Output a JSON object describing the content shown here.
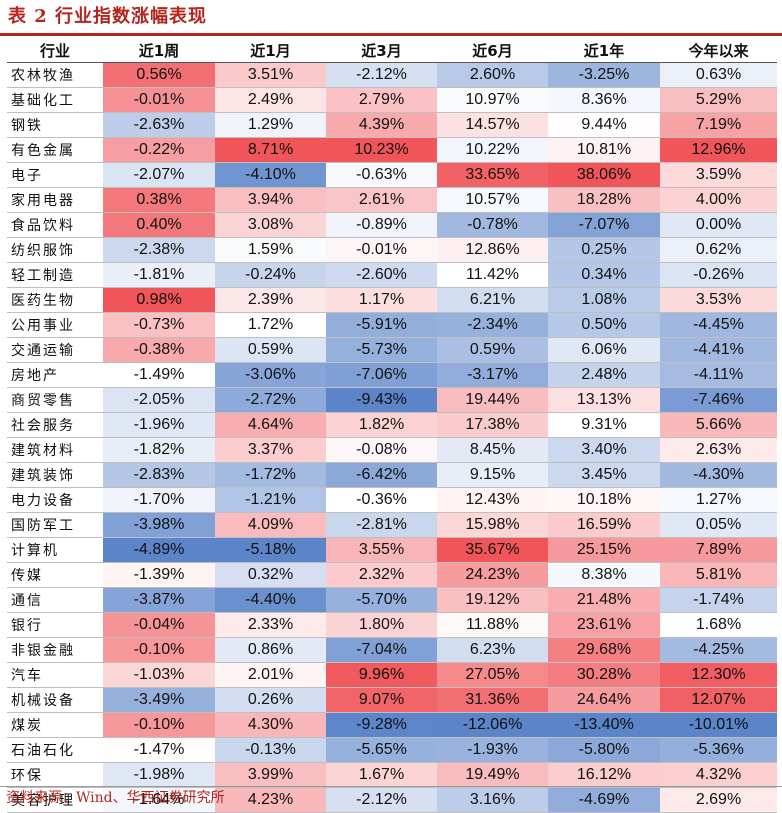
{
  "title": "表 2 行业指数涨幅表现",
  "source": "资料来源：Wind、华西证券研究所",
  "columns": [
    "行业",
    "近1周",
    "近1月",
    "近3月",
    "近6月",
    "近1年",
    "今年以来"
  ],
  "rows": [
    {
      "name": "农林牧渔",
      "values": [
        "0.56%",
        "3.51%",
        "-2.12%",
        "2.60%",
        "-3.25%",
        "0.63%"
      ]
    },
    {
      "name": "基础化工",
      "values": [
        "-0.01%",
        "2.49%",
        "2.79%",
        "10.97%",
        "8.36%",
        "5.29%"
      ]
    },
    {
      "name": "钢铁",
      "values": [
        "-2.63%",
        "1.29%",
        "4.39%",
        "14.57%",
        "9.44%",
        "7.19%"
      ]
    },
    {
      "name": "有色金属",
      "values": [
        "-0.22%",
        "8.71%",
        "10.23%",
        "10.22%",
        "10.81%",
        "12.96%"
      ]
    },
    {
      "name": "电子",
      "values": [
        "-2.07%",
        "-4.10%",
        "-0.63%",
        "33.65%",
        "38.06%",
        "3.59%"
      ]
    },
    {
      "name": "家用电器",
      "values": [
        "0.38%",
        "3.94%",
        "2.61%",
        "10.57%",
        "18.28%",
        "4.00%"
      ]
    },
    {
      "name": "食品饮料",
      "values": [
        "0.40%",
        "3.08%",
        "-0.89%",
        "-0.78%",
        "-7.07%",
        "0.00%"
      ]
    },
    {
      "name": "纺织服饰",
      "values": [
        "-2.38%",
        "1.59%",
        "-0.01%",
        "12.86%",
        "0.25%",
        "0.62%"
      ]
    },
    {
      "name": "轻工制造",
      "values": [
        "-1.81%",
        "-0.24%",
        "-2.60%",
        "11.42%",
        "0.34%",
        "-0.26%"
      ]
    },
    {
      "name": "医药生物",
      "values": [
        "0.98%",
        "2.39%",
        "1.17%",
        "6.21%",
        "1.08%",
        "3.53%"
      ]
    },
    {
      "name": "公用事业",
      "values": [
        "-0.73%",
        "1.72%",
        "-5.91%",
        "-2.34%",
        "0.50%",
        "-4.45%"
      ]
    },
    {
      "name": "交通运输",
      "values": [
        "-0.38%",
        "0.59%",
        "-5.73%",
        "0.59%",
        "6.06%",
        "-4.41%"
      ]
    },
    {
      "name": "房地产",
      "values": [
        "-1.49%",
        "-3.06%",
        "-7.06%",
        "-3.17%",
        "2.48%",
        "-4.11%"
      ]
    },
    {
      "name": "商贸零售",
      "values": [
        "-2.05%",
        "-2.72%",
        "-9.43%",
        "19.44%",
        "13.13%",
        "-7.46%"
      ]
    },
    {
      "name": "社会服务",
      "values": [
        "-1.96%",
        "4.64%",
        "1.82%",
        "17.38%",
        "9.31%",
        "5.66%"
      ]
    },
    {
      "name": "建筑材料",
      "values": [
        "-1.82%",
        "3.37%",
        "-0.08%",
        "8.45%",
        "3.40%",
        "2.63%"
      ]
    },
    {
      "name": "建筑装饰",
      "values": [
        "-2.83%",
        "-1.72%",
        "-6.42%",
        "9.15%",
        "3.45%",
        "-4.30%"
      ]
    },
    {
      "name": "电力设备",
      "values": [
        "-1.70%",
        "-1.21%",
        "-0.36%",
        "12.43%",
        "10.18%",
        "1.27%"
      ]
    },
    {
      "name": "国防军工",
      "values": [
        "-3.98%",
        "4.09%",
        "-2.81%",
        "15.98%",
        "16.59%",
        "0.05%"
      ]
    },
    {
      "name": "计算机",
      "values": [
        "-4.89%",
        "-5.18%",
        "3.55%",
        "35.67%",
        "25.15%",
        "7.89%"
      ]
    },
    {
      "name": "传媒",
      "values": [
        "-1.39%",
        "0.32%",
        "2.32%",
        "24.23%",
        "8.38%",
        "5.81%"
      ]
    },
    {
      "name": "通信",
      "values": [
        "-3.87%",
        "-4.40%",
        "-5.70%",
        "19.12%",
        "21.48%",
        "-1.74%"
      ]
    },
    {
      "name": "银行",
      "values": [
        "-0.04%",
        "2.33%",
        "1.80%",
        "11.88%",
        "23.61%",
        "1.68%"
      ]
    },
    {
      "name": "非银金融",
      "values": [
        "-0.10%",
        "0.86%",
        "-7.04%",
        "6.23%",
        "29.68%",
        "-4.25%"
      ]
    },
    {
      "name": "汽车",
      "values": [
        "-1.03%",
        "2.01%",
        "9.96%",
        "27.05%",
        "30.28%",
        "12.30%"
      ]
    },
    {
      "name": "机械设备",
      "values": [
        "-3.49%",
        "0.26%",
        "9.07%",
        "31.36%",
        "24.64%",
        "12.07%"
      ]
    },
    {
      "name": "煤炭",
      "values": [
        "-0.10%",
        "4.30%",
        "-9.28%",
        "-12.06%",
        "-13.40%",
        "-10.01%"
      ]
    },
    {
      "name": "石油石化",
      "values": [
        "-1.47%",
        "-0.13%",
        "-5.65%",
        "-1.93%",
        "-5.80%",
        "-5.36%"
      ]
    },
    {
      "name": "环保",
      "values": [
        "-1.98%",
        "3.99%",
        "1.67%",
        "19.49%",
        "16.12%",
        "4.32%"
      ]
    },
    {
      "name": "美容护理",
      "values": [
        "-1.64%",
        "4.23%",
        "-2.12%",
        "3.16%",
        "-4.69%",
        "2.69%"
      ]
    }
  ],
  "colors": {
    "title_red": "#b3261e",
    "max_red": "#f0555a",
    "min_blue": "#5b84c9",
    "mid_white": "#ffffff"
  }
}
